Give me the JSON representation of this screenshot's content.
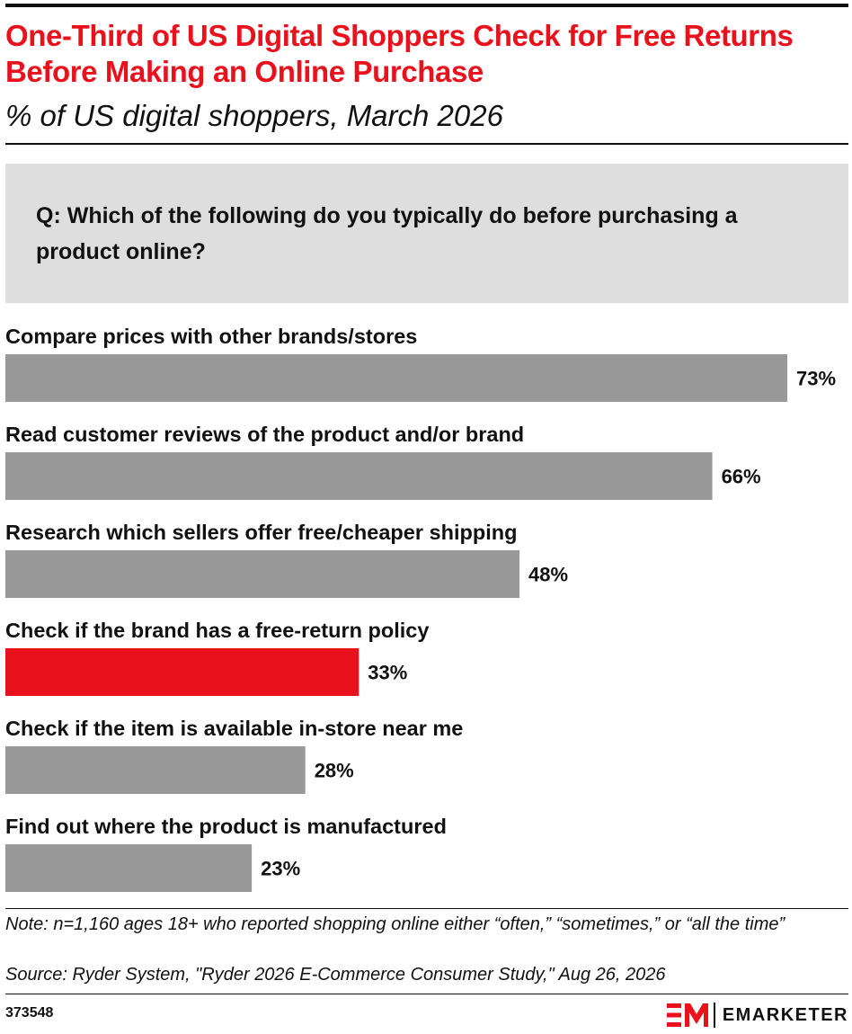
{
  "header": {
    "title": "One-Third of US Digital Shoppers Check for Free Returns Before Making an Online Purchase",
    "subtitle": "% of US digital shoppers, March 2026"
  },
  "question": "Q: Which of the following do you typically do before purchasing a product online?",
  "chart_data": {
    "type": "bar",
    "orientation": "horizontal",
    "categories": [
      "Compare prices with other brands/stores",
      "Read customer reviews of the product and/or brand",
      "Research which sellers offer free/cheaper shipping",
      "Check if the brand has a free-return policy",
      "Check if the item is available in-store near me",
      "Find out where the product is manufactured"
    ],
    "values": [
      73,
      66,
      48,
      33,
      28,
      23
    ],
    "value_labels": [
      "73%",
      "66%",
      "48%",
      "33%",
      "28%",
      "23%"
    ],
    "highlight_index": 3,
    "bar_color": "#999999",
    "highlight_color": "#e8111c",
    "xlim": [
      0,
      73
    ]
  },
  "footer": {
    "note": "Note: n=1,160 ages 18+ who reported shopping online either “often,” “sometimes,” or “all the time”",
    "source": "Source: Ryder System, \"Ryder 2026 E-Commerce Consumer Study,\" Aug 26, 2026",
    "chart_id": "373548",
    "brand": "EMARKETER",
    "brand_color": "#e8111c"
  }
}
